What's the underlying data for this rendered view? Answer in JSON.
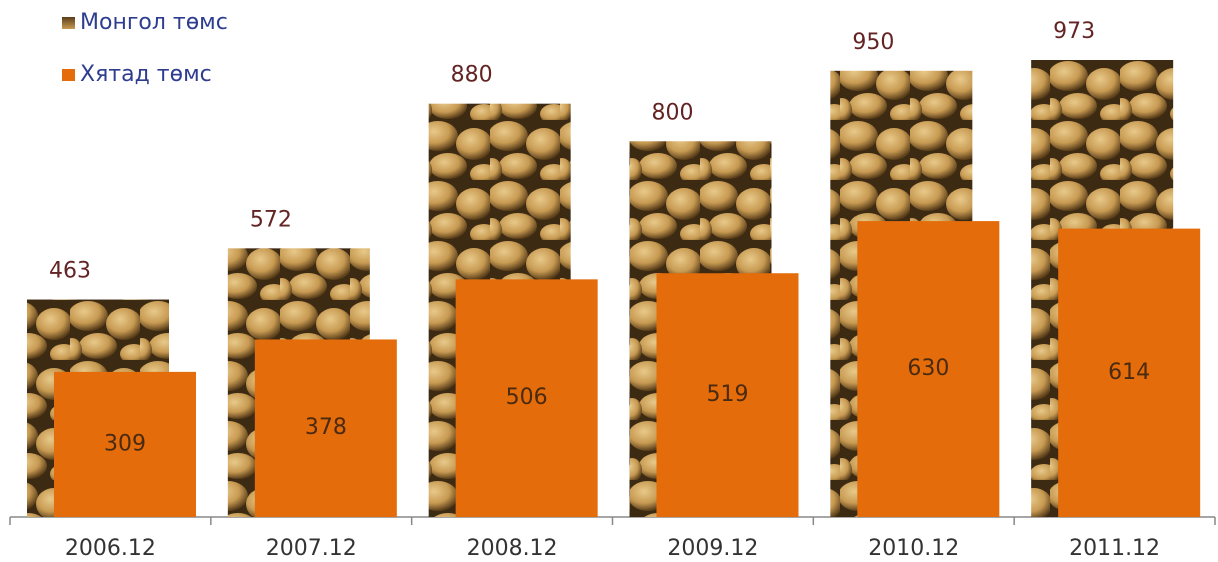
{
  "chart_data": {
    "type": "bar",
    "categories": [
      "2006.12",
      "2007.12",
      "2008.12",
      "2009.12",
      "2010.12",
      "2011.12"
    ],
    "series": [
      {
        "name": "Монгол төмс",
        "color": "#a07a3a",
        "values": [
          463,
          572,
          880,
          800,
          950,
          973
        ]
      },
      {
        "name": "Хятад төмс",
        "color": "#e46c0a",
        "values": [
          309,
          378,
          506,
          519,
          630,
          614
        ]
      }
    ]
  }
}
